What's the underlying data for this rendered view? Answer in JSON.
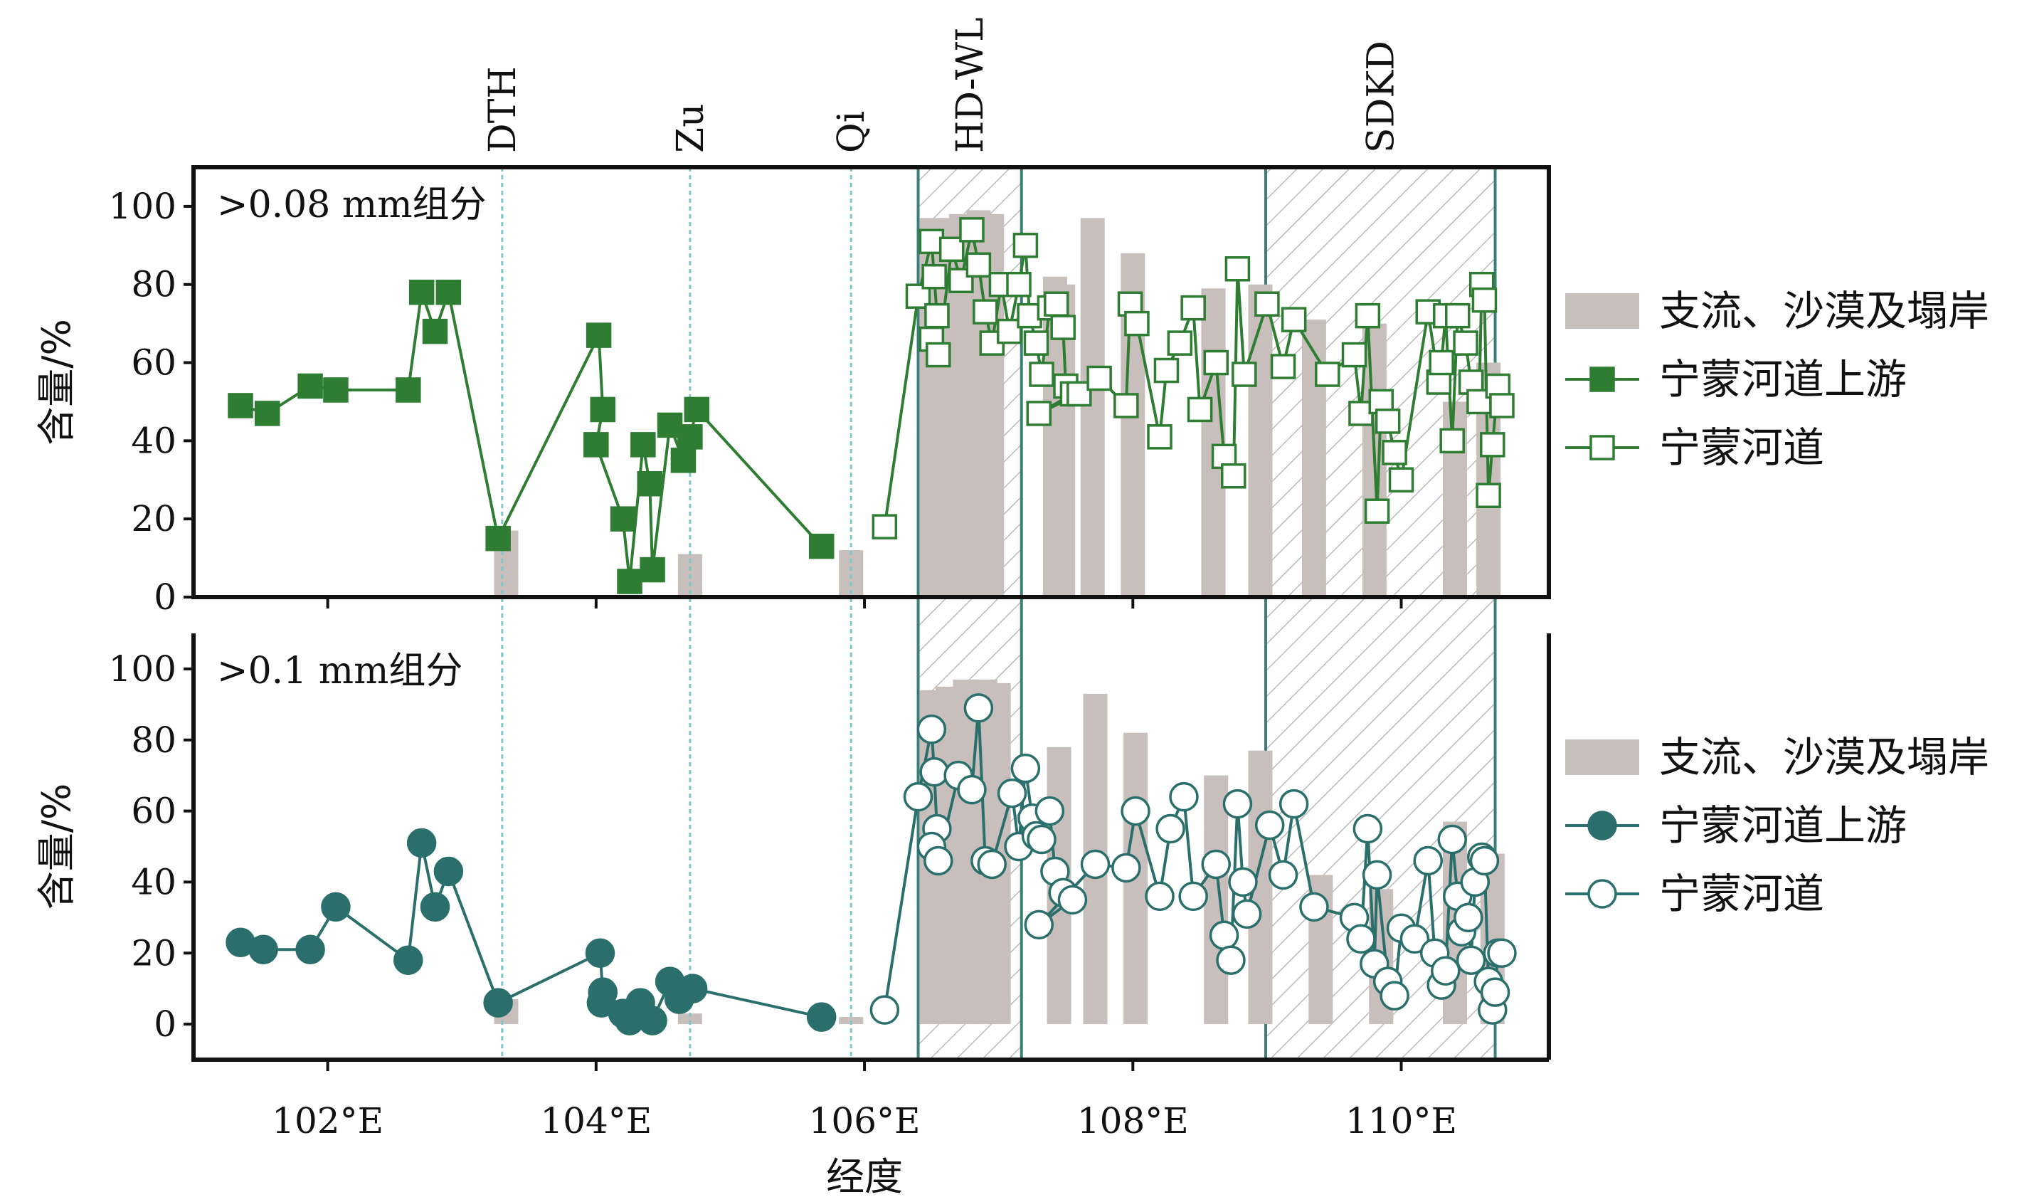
{
  "chart_data": {
    "type": "line",
    "xlabel": "经度",
    "x_ticks": [
      {
        "value": 102,
        "label": "102°E"
      },
      {
        "value": 104,
        "label": "104°E"
      },
      {
        "value": 106,
        "label": "106°E"
      },
      {
        "value": 108,
        "label": "108°E"
      },
      {
        "value": 110,
        "label": "110°E"
      }
    ],
    "xlim": [
      101.0,
      111.1
    ],
    "reference_lines": [
      {
        "label": "DTH",
        "x": 103.3
      },
      {
        "label": "Zu",
        "x": 104.7
      },
      {
        "label": "Qi",
        "x": 105.9
      }
    ],
    "highlight_regions": [
      {
        "label": "HD-WL",
        "x0": 106.4,
        "x1": 107.17
      },
      {
        "label": "SDKD",
        "x0": 108.99,
        "x1": 110.7
      }
    ],
    "colors": {
      "upper_panel_series": "#2e7d32",
      "lower_panel_series": "#2a6f6b",
      "bars": "#c8bebb",
      "reference_line": "#7ec8c8",
      "region_edge": "#3a7f7a",
      "region_hatch": "#bbbbbb"
    },
    "panels": [
      {
        "label": ">0.08 mm组分",
        "ylabel": "含量/%",
        "ylim": [
          0,
          110
        ],
        "yticks": [
          0,
          20,
          40,
          60,
          80,
          100
        ],
        "marker": "square",
        "bars": {
          "name": "支流、沙漠及塌岸",
          "points": [
            [
              103.33,
              17
            ],
            [
              104.7,
              11
            ],
            [
              105.9,
              12
            ],
            [
              106.5,
              97
            ],
            [
              106.6,
              97
            ],
            [
              106.72,
              98
            ],
            [
              106.85,
              99
            ],
            [
              106.95,
              98
            ],
            [
              107.42,
              82
            ],
            [
              107.48,
              80
            ],
            [
              107.7,
              97
            ],
            [
              108.0,
              88
            ],
            [
              108.6,
              79
            ],
            [
              108.95,
              80
            ],
            [
              109.35,
              71
            ],
            [
              109.8,
              70
            ],
            [
              110.4,
              50
            ],
            [
              110.65,
              60
            ]
          ]
        },
        "series": [
          {
            "name": "宁蒙河道上游",
            "filled": true,
            "points": [
              [
                101.35,
                49
              ],
              [
                101.55,
                47
              ],
              [
                101.87,
                54
              ],
              [
                102.06,
                53
              ],
              [
                102.6,
                53
              ],
              [
                102.7,
                78
              ],
              [
                102.8,
                68
              ],
              [
                102.9,
                78
              ],
              [
                103.27,
                15
              ],
              [
                104.02,
                67
              ],
              [
                104.05,
                48
              ],
              [
                104.0,
                39
              ],
              [
                104.2,
                20
              ],
              [
                104.25,
                4
              ],
              [
                104.35,
                39
              ],
              [
                104.4,
                29
              ],
              [
                104.42,
                7
              ],
              [
                104.55,
                44
              ],
              [
                104.65,
                35
              ],
              [
                104.7,
                41
              ],
              [
                104.75,
                48
              ],
              [
                105.68,
                13
              ]
            ]
          },
          {
            "name": "宁蒙河道",
            "filled": false,
            "points": [
              [
                106.15,
                18
              ],
              [
                106.4,
                77
              ],
              [
                106.5,
                91
              ],
              [
                106.52,
                82
              ],
              [
                106.54,
                72
              ],
              [
                106.5,
                66
              ],
              [
                106.55,
                62
              ],
              [
                106.65,
                89
              ],
              [
                106.72,
                81
              ],
              [
                106.8,
                94
              ],
              [
                106.85,
                85
              ],
              [
                106.9,
                73
              ],
              [
                106.95,
                65
              ],
              [
                107.02,
                80
              ],
              [
                107.08,
                68
              ],
              [
                107.15,
                80
              ],
              [
                107.2,
                90
              ],
              [
                107.23,
                72
              ],
              [
                107.28,
                65
              ],
              [
                107.32,
                57
              ],
              [
                107.38,
                74
              ],
              [
                107.43,
                75
              ],
              [
                107.48,
                69
              ],
              [
                107.5,
                54
              ],
              [
                107.55,
                52
              ],
              [
                107.6,
                52
              ],
              [
                107.3,
                47
              ],
              [
                107.75,
                56
              ],
              [
                107.95,
                49
              ],
              [
                107.98,
                75
              ],
              [
                108.03,
                70
              ],
              [
                108.2,
                41
              ],
              [
                108.25,
                58
              ],
              [
                108.35,
                65
              ],
              [
                108.45,
                74
              ],
              [
                108.5,
                48
              ],
              [
                108.62,
                60
              ],
              [
                108.68,
                36
              ],
              [
                108.75,
                31
              ],
              [
                108.78,
                84
              ],
              [
                108.83,
                57
              ],
              [
                109.0,
                75
              ],
              [
                109.12,
                59
              ],
              [
                109.2,
                71
              ],
              [
                109.45,
                57
              ],
              [
                109.65,
                62
              ],
              [
                109.7,
                47
              ],
              [
                109.75,
                72
              ],
              [
                109.82,
                22
              ],
              [
                109.85,
                50
              ],
              [
                109.9,
                45
              ],
              [
                109.95,
                37
              ],
              [
                110.0,
                30
              ],
              [
                110.2,
                73
              ],
              [
                110.28,
                55
              ],
              [
                110.3,
                60
              ],
              [
                110.33,
                72
              ],
              [
                110.38,
                40
              ],
              [
                110.42,
                72
              ],
              [
                110.48,
                65
              ],
              [
                110.52,
                55
              ],
              [
                110.58,
                50
              ],
              [
                110.6,
                80
              ],
              [
                110.62,
                76
              ],
              [
                110.65,
                26
              ],
              [
                110.68,
                39
              ],
              [
                110.72,
                54
              ],
              [
                110.75,
                49
              ]
            ]
          }
        ]
      },
      {
        "label": ">0.1 mm组分",
        "ylabel": "含量/%",
        "ylim": [
          -10,
          110
        ],
        "yticks": [
          0,
          20,
          40,
          60,
          80,
          100
        ],
        "marker": "circle",
        "bars": {
          "name": "支流、沙漠及塌岸",
          "points": [
            [
              103.33,
              7
            ],
            [
              104.7,
              3
            ],
            [
              105.9,
              2
            ],
            [
              106.5,
              94
            ],
            [
              106.62,
              95
            ],
            [
              106.75,
              97
            ],
            [
              106.9,
              97
            ],
            [
              107.0,
              96
            ],
            [
              107.45,
              78
            ],
            [
              107.72,
              93
            ],
            [
              108.02,
              82
            ],
            [
              108.62,
              70
            ],
            [
              108.95,
              77
            ],
            [
              109.4,
              42
            ],
            [
              109.85,
              38
            ],
            [
              110.4,
              57
            ],
            [
              110.68,
              48
            ]
          ]
        },
        "series": [
          {
            "name": "宁蒙河道上游",
            "filled": true,
            "points": [
              [
                101.35,
                23
              ],
              [
                101.52,
                21
              ],
              [
                101.87,
                21
              ],
              [
                102.06,
                33
              ],
              [
                102.6,
                18
              ],
              [
                102.7,
                51
              ],
              [
                102.8,
                33
              ],
              [
                102.9,
                43
              ],
              [
                103.27,
                6
              ],
              [
                104.03,
                20
              ],
              [
                104.05,
                9
              ],
              [
                104.04,
                6
              ],
              [
                104.2,
                3
              ],
              [
                104.25,
                1
              ],
              [
                104.33,
                6
              ],
              [
                104.42,
                1
              ],
              [
                104.55,
                12
              ],
              [
                104.62,
                7
              ],
              [
                104.72,
                10
              ],
              [
                105.68,
                2
              ]
            ]
          },
          {
            "name": "宁蒙河道",
            "filled": false,
            "points": [
              [
                106.15,
                4
              ],
              [
                106.4,
                64
              ],
              [
                106.5,
                83
              ],
              [
                106.52,
                71
              ],
              [
                106.54,
                55
              ],
              [
                106.5,
                50
              ],
              [
                106.55,
                46
              ],
              [
                106.7,
                70
              ],
              [
                106.8,
                66
              ],
              [
                106.85,
                89
              ],
              [
                106.9,
                46
              ],
              [
                106.95,
                45
              ],
              [
                107.1,
                65
              ],
              [
                107.15,
                50
              ],
              [
                107.2,
                72
              ],
              [
                107.25,
                58
              ],
              [
                107.28,
                53
              ],
              [
                107.32,
                52
              ],
              [
                107.38,
                60
              ],
              [
                107.42,
                43
              ],
              [
                107.48,
                37
              ],
              [
                107.55,
                35
              ],
              [
                107.3,
                28
              ],
              [
                107.72,
                45
              ],
              [
                107.95,
                44
              ],
              [
                108.02,
                60
              ],
              [
                108.2,
                36
              ],
              [
                108.28,
                55
              ],
              [
                108.38,
                64
              ],
              [
                108.45,
                36
              ],
              [
                108.62,
                45
              ],
              [
                108.68,
                25
              ],
              [
                108.73,
                18
              ],
              [
                108.78,
                62
              ],
              [
                108.82,
                40
              ],
              [
                108.85,
                31
              ],
              [
                109.02,
                56
              ],
              [
                109.12,
                42
              ],
              [
                109.2,
                62
              ],
              [
                109.35,
                33
              ],
              [
                109.65,
                30
              ],
              [
                109.7,
                24
              ],
              [
                109.75,
                55
              ],
              [
                109.8,
                17
              ],
              [
                109.82,
                42
              ],
              [
                109.9,
                12
              ],
              [
                109.95,
                8
              ],
              [
                110.0,
                27
              ],
              [
                110.1,
                24
              ],
              [
                110.2,
                46
              ],
              [
                110.25,
                20
              ],
              [
                110.3,
                11
              ],
              [
                110.33,
                15
              ],
              [
                110.38,
                52
              ],
              [
                110.42,
                36
              ],
              [
                110.45,
                26
              ],
              [
                110.5,
                30
              ],
              [
                110.52,
                18
              ],
              [
                110.55,
                40
              ],
              [
                110.6,
                47
              ],
              [
                110.62,
                46
              ],
              [
                110.65,
                12
              ],
              [
                110.68,
                4
              ],
              [
                110.7,
                9
              ],
              [
                110.72,
                20
              ],
              [
                110.75,
                20
              ]
            ]
          }
        ]
      }
    ]
  }
}
